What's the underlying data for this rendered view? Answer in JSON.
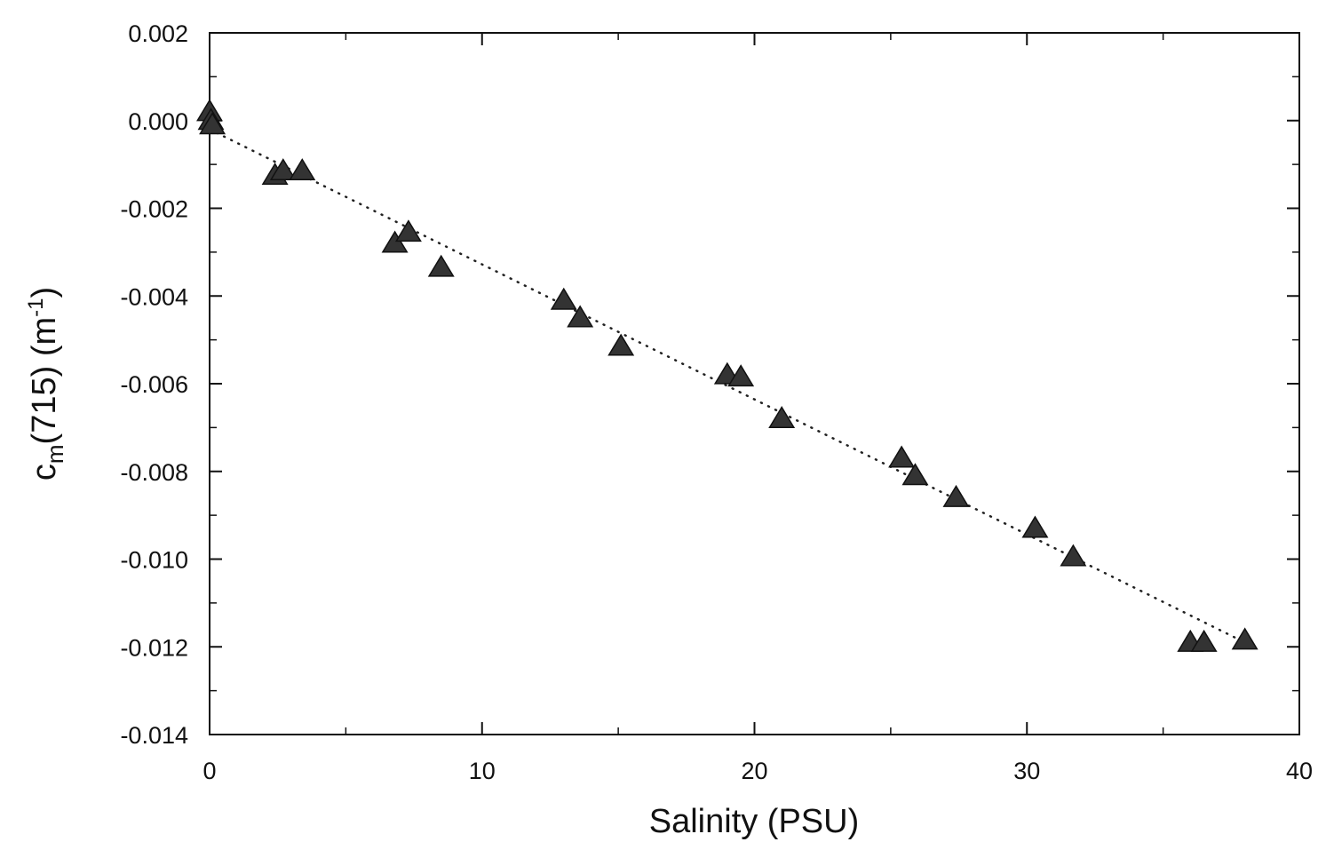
{
  "chart_data": {
    "type": "scatter",
    "title": "",
    "xlabel": "Salinity (PSU)",
    "ylabel": {
      "prefix": "c",
      "subscript": "m",
      "middle": "(715) (m",
      "superscript": "-1",
      "suffix": ")"
    },
    "xlim": [
      0,
      40
    ],
    "ylim": [
      -0.014,
      0.002
    ],
    "x_ticks": [
      0,
      10,
      20,
      30,
      40
    ],
    "x_tick_labels": [
      "0",
      "10",
      "20",
      "30",
      "40"
    ],
    "y_ticks": [
      0.002,
      0.0,
      -0.002,
      -0.004,
      -0.006,
      -0.008,
      -0.01,
      -0.012,
      -0.014
    ],
    "y_tick_labels": [
      "0.002",
      "0.000",
      "-0.002",
      "-0.004",
      "-0.006",
      "-0.008",
      "-0.010",
      "-0.012",
      "-0.014"
    ],
    "grid": false,
    "marker": "triangle",
    "marker_color": "#333333",
    "points": [
      {
        "x": 0.0,
        "y": 0.0002
      },
      {
        "x": 0.05,
        "y": 0.0
      },
      {
        "x": 0.1,
        "y": -0.0001
      },
      {
        "x": 2.4,
        "y": -0.00125
      },
      {
        "x": 2.7,
        "y": -0.00115
      },
      {
        "x": 3.4,
        "y": -0.00115
      },
      {
        "x": 6.8,
        "y": -0.0028
      },
      {
        "x": 7.3,
        "y": -0.00255
      },
      {
        "x": 8.5,
        "y": -0.00335
      },
      {
        "x": 13.0,
        "y": -0.0041
      },
      {
        "x": 13.6,
        "y": -0.0045
      },
      {
        "x": 15.1,
        "y": -0.00515
      },
      {
        "x": 19.0,
        "y": -0.0058
      },
      {
        "x": 19.5,
        "y": -0.00585
      },
      {
        "x": 21.0,
        "y": -0.0068
      },
      {
        "x": 25.4,
        "y": -0.0077
      },
      {
        "x": 25.9,
        "y": -0.0081
      },
      {
        "x": 27.4,
        "y": -0.0086
      },
      {
        "x": 30.3,
        "y": -0.0093
      },
      {
        "x": 31.7,
        "y": -0.00995
      },
      {
        "x": 36.0,
        "y": -0.0119
      },
      {
        "x": 36.5,
        "y": -0.0119
      },
      {
        "x": 38.0,
        "y": -0.01185
      }
    ],
    "fit_line": {
      "style": "dotted",
      "x": [
        0,
        38
      ],
      "y": [
        -0.0002,
        -0.0119
      ]
    }
  }
}
